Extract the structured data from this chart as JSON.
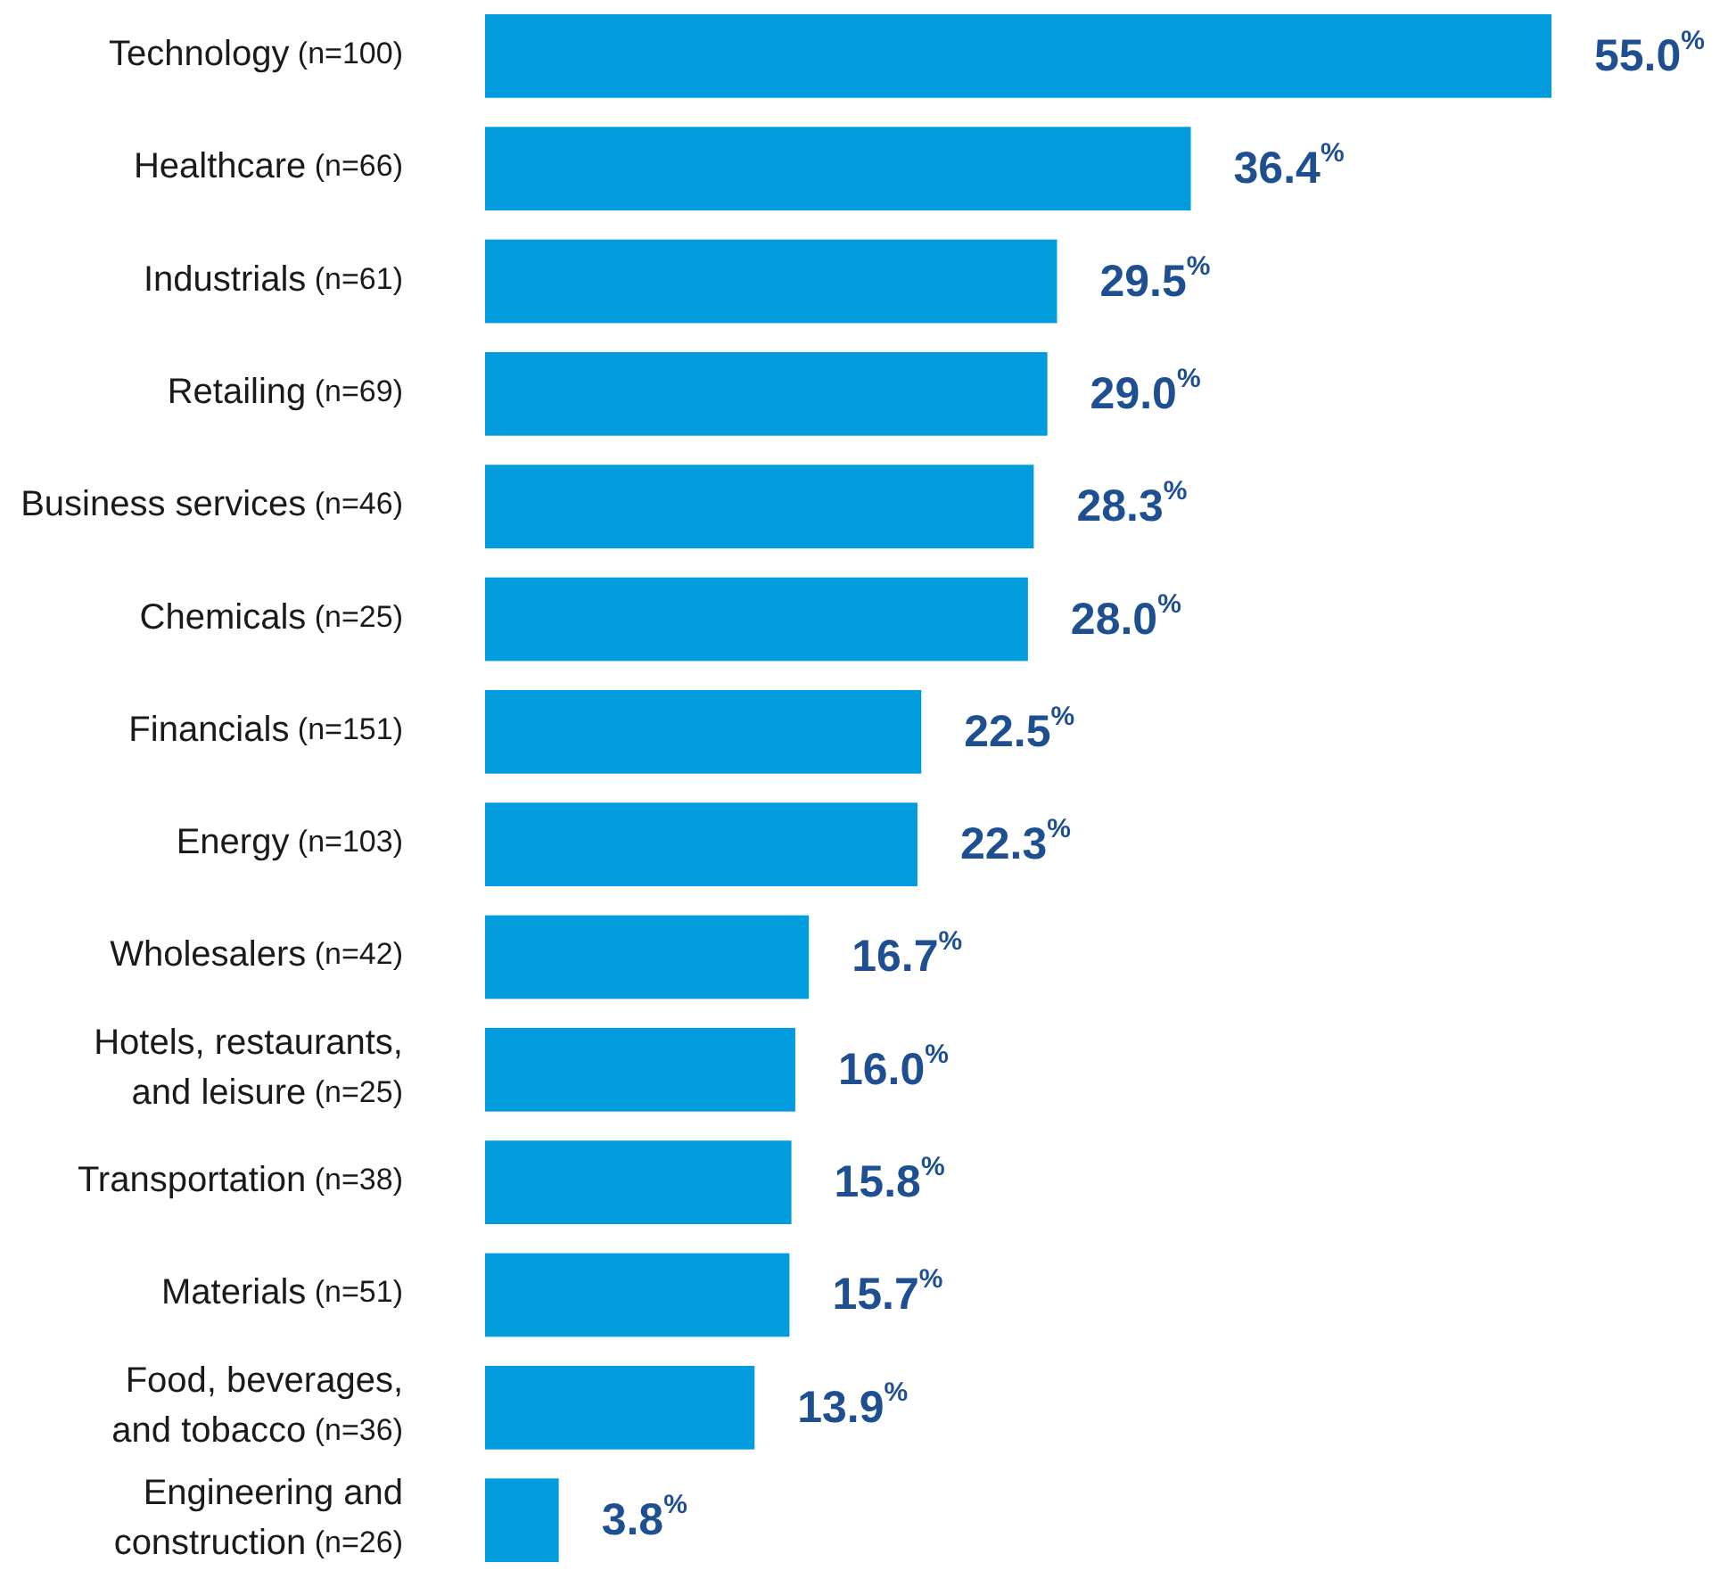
{
  "chart_data": {
    "type": "bar",
    "orientation": "horizontal",
    "color": "#009cde",
    "categories": [
      "Technology (n=100)",
      "Healthcare (n=66)",
      "Industrials (n=61)",
      "Retailing (n=69)",
      "Business services (n=46)",
      "Chemicals (n=25)",
      "Financials (n=151)",
      "Energy (n=103)",
      "Wholesalers (n=42)",
      "Hotels, restaurants, and leisure (n=25)",
      "Transportation (n=38)",
      "Materials (n=51)",
      "Food, beverages, and tobacco (n=36)",
      "Engineering and construction (n=26)"
    ],
    "values": [
      55.0,
      36.4,
      29.5,
      29.0,
      28.3,
      28.0,
      22.5,
      22.3,
      16.7,
      16.0,
      15.8,
      15.7,
      13.9,
      3.8
    ],
    "value_labels": [
      "55.0$^{%}$",
      "36.4$^{%}$",
      "29.5$^{%}$",
      "29.0$^{%}$",
      "28.3$^{%}$",
      "28.0$^{%}$",
      "22.5$^{%}$",
      "22.3$^{%}$",
      "16.7$^{%}$",
      "16.0$^{%}$",
      "15.8$^{%}$",
      "15.7$^{%}$",
      "13.9$^{%}$",
      "3.8$^{%}$"
    ]
  }
}
